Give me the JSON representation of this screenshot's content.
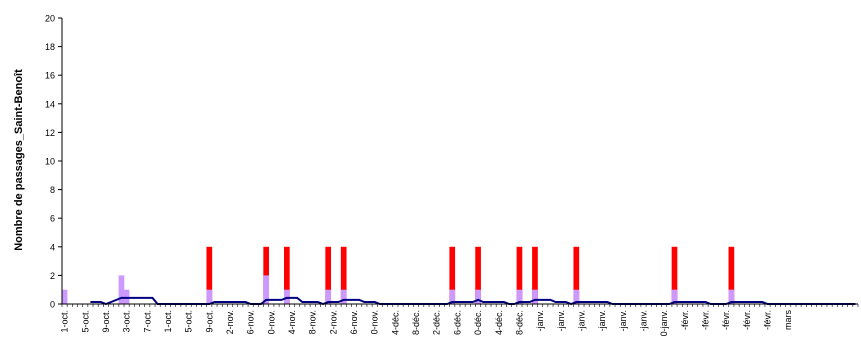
{
  "chart_data": {
    "type": "bar",
    "ylabel": "Nombre de passages_Saint-Benoît",
    "xlabel": "",
    "ylim": [
      0,
      20
    ],
    "yticks": [
      0,
      2,
      4,
      6,
      8,
      10,
      12,
      14,
      16,
      18,
      20
    ],
    "grid": false,
    "x_start": "2007-10-01",
    "x_end": "2008-03-02",
    "xtick_labels": [
      "1-oct.",
      "5-oct.",
      "9-oct.",
      "3-oct.",
      "7-oct.",
      "1-oct.",
      "5-oct.",
      "9-oct.",
      "2-nov.",
      "6-nov.",
      "0-nov.",
      "4-nov.",
      "8-nov.",
      "2-nov.",
      "6-nov.",
      "0-nov.",
      "4-déc.",
      "8-déc.",
      "2-déc.",
      "6-déc.",
      "0-déc.",
      "4-déc.",
      "8-déc.",
      "-janv.",
      "-janv.",
      "-janv.",
      "-janv.",
      "-janv.",
      "-janv.",
      "0-janv.",
      "-févr.",
      "-févr.",
      "-févr.",
      "-févr.",
      "-févr.",
      "mars"
    ],
    "colors": {
      "red": "#ff0000",
      "violet": "#cc99ff",
      "line": "#000080",
      "axis": "#000000"
    },
    "series": [
      {
        "style": "bar",
        "color": "#ff0000",
        "points": [
          {
            "date": "2007-10-29",
            "value": 4
          },
          {
            "date": "2007-11-09",
            "value": 4
          },
          {
            "date": "2007-11-13",
            "value": 4
          },
          {
            "date": "2007-11-21",
            "value": 4
          },
          {
            "date": "2007-11-24",
            "value": 4
          },
          {
            "date": "2007-12-15",
            "value": 4
          },
          {
            "date": "2007-12-20",
            "value": 4
          },
          {
            "date": "2007-12-28",
            "value": 4
          },
          {
            "date": "2007-12-31",
            "value": 4
          },
          {
            "date": "2008-01-08",
            "value": 4
          },
          {
            "date": "2008-01-27",
            "value": 4
          },
          {
            "date": "2008-02-07",
            "value": 4
          }
        ]
      },
      {
        "style": "bar",
        "color": "#cc99ff",
        "points": [
          {
            "date": "2007-10-01",
            "value": 1
          },
          {
            "date": "2007-10-12",
            "value": 2
          },
          {
            "date": "2007-10-13",
            "value": 1
          },
          {
            "date": "2007-10-29",
            "value": 1
          },
          {
            "date": "2007-11-09",
            "value": 2
          },
          {
            "date": "2007-11-13",
            "value": 1
          },
          {
            "date": "2007-11-21",
            "value": 1
          },
          {
            "date": "2007-11-24",
            "value": 1
          },
          {
            "date": "2007-12-15",
            "value": 1
          },
          {
            "date": "2007-12-20",
            "value": 1
          },
          {
            "date": "2007-12-28",
            "value": 1
          },
          {
            "date": "2007-12-31",
            "value": 1
          },
          {
            "date": "2008-01-08",
            "value": 1
          },
          {
            "date": "2008-01-27",
            "value": 1
          },
          {
            "date": "2008-02-07",
            "value": 1
          }
        ]
      },
      {
        "style": "line",
        "color": "#000080",
        "points": [
          {
            "date": "2007-10-06",
            "value": 0.14
          },
          {
            "date": "2007-10-08",
            "value": 0.14
          },
          {
            "date": "2007-10-09",
            "value": 0
          },
          {
            "date": "2007-10-10",
            "value": 0.14
          },
          {
            "date": "2007-10-12",
            "value": 0.43
          },
          {
            "date": "2007-10-18",
            "value": 0.43
          },
          {
            "date": "2007-10-19",
            "value": 0
          },
          {
            "date": "2007-10-29",
            "value": 0
          },
          {
            "date": "2007-10-30",
            "value": 0.14
          },
          {
            "date": "2007-11-05",
            "value": 0.14
          },
          {
            "date": "2007-11-06",
            "value": 0
          },
          {
            "date": "2007-11-08",
            "value": 0
          },
          {
            "date": "2007-11-09",
            "value": 0.29
          },
          {
            "date": "2007-11-12",
            "value": 0.29
          },
          {
            "date": "2007-11-13",
            "value": 0.43
          },
          {
            "date": "2007-11-15",
            "value": 0.43
          },
          {
            "date": "2007-11-16",
            "value": 0.14
          },
          {
            "date": "2007-11-19",
            "value": 0.14
          },
          {
            "date": "2007-11-20",
            "value": 0
          },
          {
            "date": "2007-11-21",
            "value": 0.14
          },
          {
            "date": "2007-11-23",
            "value": 0.14
          },
          {
            "date": "2007-11-24",
            "value": 0.29
          },
          {
            "date": "2007-11-27",
            "value": 0.29
          },
          {
            "date": "2007-11-28",
            "value": 0.14
          },
          {
            "date": "2007-11-30",
            "value": 0.14
          },
          {
            "date": "2007-12-01",
            "value": 0
          },
          {
            "date": "2007-12-14",
            "value": 0
          },
          {
            "date": "2007-12-15",
            "value": 0.14
          },
          {
            "date": "2007-12-19",
            "value": 0.14
          },
          {
            "date": "2007-12-20",
            "value": 0.29
          },
          {
            "date": "2007-12-21",
            "value": 0.14
          },
          {
            "date": "2007-12-25",
            "value": 0.14
          },
          {
            "date": "2007-12-26",
            "value": 0
          },
          {
            "date": "2007-12-27",
            "value": 0
          },
          {
            "date": "2007-12-28",
            "value": 0.14
          },
          {
            "date": "2007-12-30",
            "value": 0.14
          },
          {
            "date": "2007-12-31",
            "value": 0.29
          },
          {
            "date": "2008-01-03",
            "value": 0.29
          },
          {
            "date": "2008-01-04",
            "value": 0.14
          },
          {
            "date": "2008-01-06",
            "value": 0.14
          },
          {
            "date": "2008-01-07",
            "value": 0
          },
          {
            "date": "2008-01-08",
            "value": 0.14
          },
          {
            "date": "2008-01-14",
            "value": 0.14
          },
          {
            "date": "2008-01-15",
            "value": 0
          },
          {
            "date": "2008-01-26",
            "value": 0
          },
          {
            "date": "2008-01-27",
            "value": 0.14
          },
          {
            "date": "2008-02-02",
            "value": 0.14
          },
          {
            "date": "2008-02-03",
            "value": 0
          },
          {
            "date": "2008-02-06",
            "value": 0
          },
          {
            "date": "2008-02-07",
            "value": 0.14
          },
          {
            "date": "2008-02-13",
            "value": 0.14
          },
          {
            "date": "2008-02-14",
            "value": 0
          },
          {
            "date": "2008-03-02",
            "value": 0
          }
        ]
      }
    ]
  }
}
